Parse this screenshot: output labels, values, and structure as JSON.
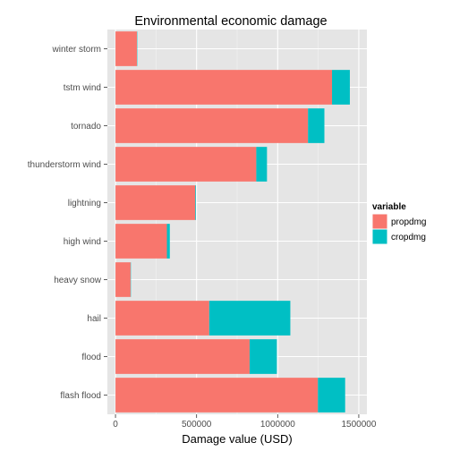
{
  "chart_data": {
    "type": "bar",
    "orientation": "horizontal",
    "stacked": true,
    "title": "Environmental economic damage",
    "xlabel": "Damage value (USD)",
    "ylabel": "",
    "xlim": [
      0,
      1500000
    ],
    "xticks": [
      0,
      500000,
      1000000,
      1500000
    ],
    "xtick_labels": [
      "0",
      "500000",
      "1000000",
      "1500000"
    ],
    "grid": true,
    "categories": [
      "winter storm",
      "tstm wind",
      "tornado",
      "thunderstorm wind",
      "lightning",
      "high wind",
      "heavy snow",
      "hail",
      "flood",
      "flash flood"
    ],
    "series": [
      {
        "name": "propdmg",
        "color": "#F8766D",
        "values": [
          132000,
          1335000,
          1187000,
          868000,
          492000,
          317000,
          93000,
          578000,
          827000,
          1248000
        ]
      },
      {
        "name": "cropdmg",
        "color": "#00BFC4",
        "values": [
          2000,
          110000,
          101000,
          66000,
          4000,
          18000,
          2000,
          500000,
          168000,
          168000
        ]
      }
    ],
    "legend": {
      "title": "variable",
      "position": "right",
      "entries": [
        "propdmg",
        "cropdmg"
      ]
    }
  }
}
